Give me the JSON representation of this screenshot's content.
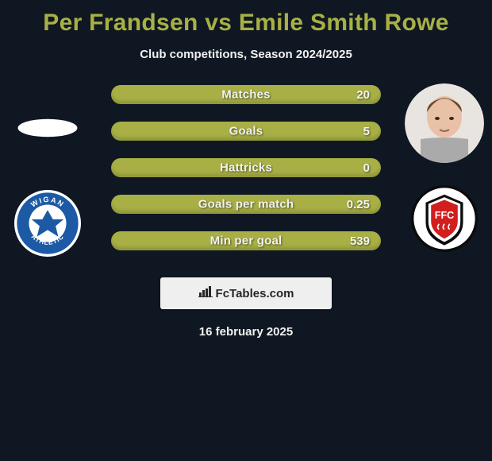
{
  "title": "Per Frandsen vs Emile Smith Rowe",
  "subtitle": "Club competitions, Season 2024/2025",
  "date": "16 february 2025",
  "footer": {
    "label": "FcTables.com",
    "icon": "chart-bar-icon"
  },
  "colors": {
    "background": "#0f1722",
    "accent": "#a8b045",
    "text_light": "#f1f1f1",
    "bar_text": "#f4f4f4",
    "footer_bg": "#efefef",
    "footer_text": "#262626"
  },
  "stats": {
    "type": "horizontal-stat-bars",
    "bar_color": "#a8b045",
    "rows": [
      {
        "label": "Matches",
        "left": "",
        "right": "20"
      },
      {
        "label": "Goals",
        "left": "",
        "right": "5"
      },
      {
        "label": "Hattricks",
        "left": "",
        "right": "0"
      },
      {
        "label": "Goals per match",
        "left": "",
        "right": "0.25"
      },
      {
        "label": "Min per goal",
        "left": "",
        "right": "539"
      }
    ]
  },
  "left_player": {
    "name": "Per Frandsen",
    "portrait_kind": "none",
    "crest_kind": "wigan"
  },
  "right_player": {
    "name": "Emile Smith Rowe",
    "portrait_kind": "photo",
    "crest_kind": "fulham"
  }
}
